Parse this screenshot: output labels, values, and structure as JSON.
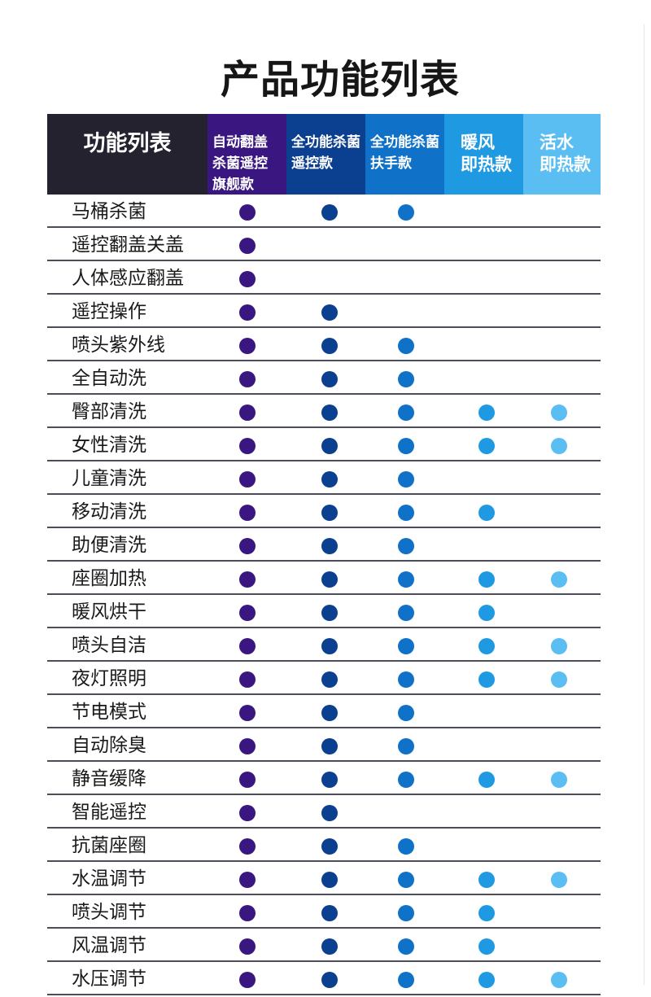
{
  "title": "产品功能列表",
  "header": {
    "first": "功能列表",
    "columns": [
      {
        "lines": [
          "自动翻盖",
          "杀菌遥控",
          "旗舰款"
        ],
        "color": "#3a1680",
        "dot": "#3a1680"
      },
      {
        "lines": [
          "全功能杀菌",
          "遥控款"
        ],
        "color": "#0b3f8f",
        "dot": "#0b3f8f"
      },
      {
        "lines": [
          "全功能杀菌",
          "扶手款"
        ],
        "color": "#0f71c8",
        "dot": "#0f71c8"
      },
      {
        "lines": [
          "暖风",
          "即热款"
        ],
        "color": "#1f9ae2",
        "dot": "#1f9ae2"
      },
      {
        "lines": [
          "活水",
          "即热款"
        ],
        "color": "#5abef2",
        "dot": "#5abef2"
      }
    ]
  },
  "rows": [
    {
      "label": "马桶杀菌",
      "marks": [
        1,
        1,
        1,
        0,
        0
      ]
    },
    {
      "label": "遥控翻盖关盖",
      "marks": [
        1,
        0,
        0,
        0,
        0
      ]
    },
    {
      "label": "人体感应翻盖",
      "marks": [
        1,
        0,
        0,
        0,
        0
      ]
    },
    {
      "label": "遥控操作",
      "marks": [
        1,
        1,
        0,
        0,
        0
      ]
    },
    {
      "label": "喷头紫外线",
      "marks": [
        1,
        1,
        1,
        0,
        0
      ]
    },
    {
      "label": "全自动洗",
      "marks": [
        1,
        1,
        1,
        0,
        0
      ]
    },
    {
      "label": "臀部清洗",
      "marks": [
        1,
        1,
        1,
        1,
        1
      ]
    },
    {
      "label": "女性清洗",
      "marks": [
        1,
        1,
        1,
        1,
        1
      ]
    },
    {
      "label": "儿童清洗",
      "marks": [
        1,
        1,
        1,
        0,
        0
      ]
    },
    {
      "label": "移动清洗",
      "marks": [
        1,
        1,
        1,
        1,
        0
      ]
    },
    {
      "label": "助便清洗",
      "marks": [
        1,
        1,
        1,
        0,
        0
      ]
    },
    {
      "label": "座圈加热",
      "marks": [
        1,
        1,
        1,
        1,
        1
      ]
    },
    {
      "label": "暖风烘干",
      "marks": [
        1,
        1,
        1,
        1,
        0
      ]
    },
    {
      "label": "喷头自洁",
      "marks": [
        1,
        1,
        1,
        1,
        1
      ]
    },
    {
      "label": "夜灯照明",
      "marks": [
        1,
        1,
        1,
        1,
        1
      ]
    },
    {
      "label": "节电模式",
      "marks": [
        1,
        1,
        1,
        0,
        0
      ]
    },
    {
      "label": "自动除臭",
      "marks": [
        1,
        1,
        1,
        0,
        0
      ]
    },
    {
      "label": "静音缓降",
      "marks": [
        1,
        1,
        1,
        1,
        1
      ]
    },
    {
      "label": "智能遥控",
      "marks": [
        1,
        1,
        0,
        0,
        0
      ]
    },
    {
      "label": "抗菌座圈",
      "marks": [
        1,
        1,
        1,
        0,
        0
      ]
    },
    {
      "label": "水温调节",
      "marks": [
        1,
        1,
        1,
        1,
        1
      ]
    },
    {
      "label": "喷头调节",
      "marks": [
        1,
        1,
        1,
        1,
        0
      ]
    },
    {
      "label": "风温调节",
      "marks": [
        1,
        1,
        1,
        1,
        0
      ]
    },
    {
      "label": "水压调节",
      "marks": [
        1,
        1,
        1,
        1,
        1
      ]
    }
  ]
}
